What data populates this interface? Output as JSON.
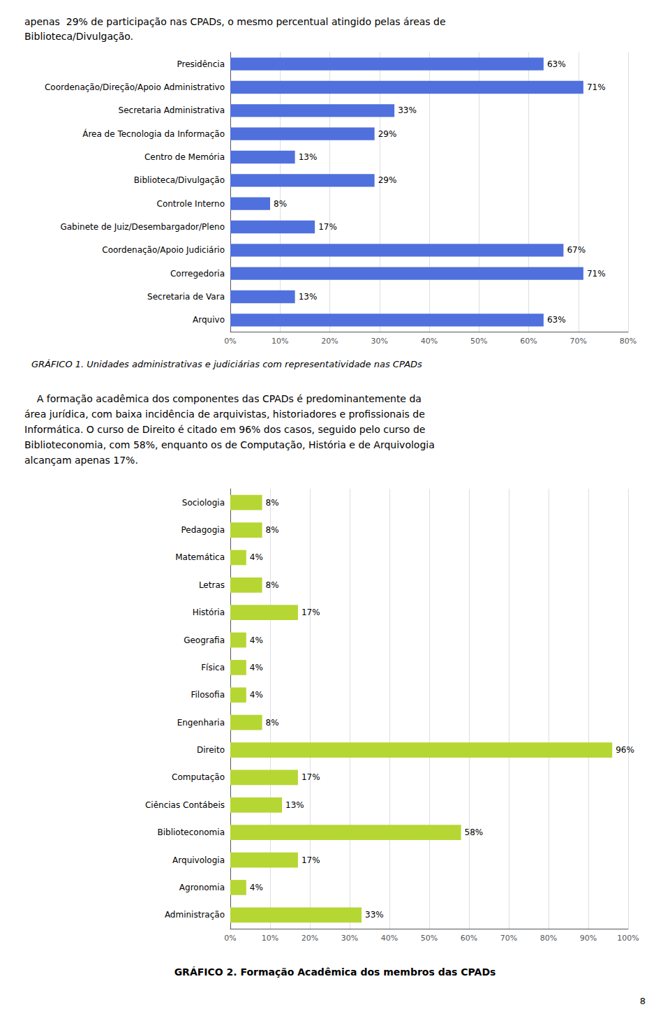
{
  "chart_data": [
    {
      "type": "bar",
      "orientation": "horizontal",
      "title": "GRÁFICO 1. Unidades administrativas e judiciárias com representatividade nas CPADs",
      "annotations": [
        "apenas  29% de participação nas CPADs, o mesmo percentual atingido pelas áreas de\nBiblioteca/Divulgação."
      ],
      "categories": [
        "Presidência",
        "Coordenação/Direção/Apoio Administrativo",
        "Secretaria Administrativa",
        "Área de Tecnologia da Informação",
        "Centro de Memória",
        "Biblioteca/Divulgação",
        "Controle Interno",
        "Gabinete de Juiz/Desembargador/Pleno",
        "Coordenação/Apoio Judiciário",
        "Corregedoria",
        "Secretaria de Vara",
        "Arquivo"
      ],
      "values": [
        63,
        71,
        33,
        29,
        13,
        29,
        8,
        17,
        67,
        71,
        13,
        63
      ],
      "value_labels": [
        "63%",
        "71%",
        "33%",
        "29%",
        "13%",
        "29%",
        "8%",
        "17%",
        "67%",
        "71%",
        "13%",
        "63%"
      ],
      "data_labels": true,
      "xlim": [
        0,
        80
      ],
      "xticks": [
        {
          "value": 0,
          "label": "0%"
        },
        {
          "value": 10,
          "label": "10%"
        },
        {
          "value": 20,
          "label": "20%"
        },
        {
          "value": 30,
          "label": "30%"
        },
        {
          "value": 40,
          "label": "40%"
        },
        {
          "value": 50,
          "label": "50%"
        },
        {
          "value": 60,
          "label": "60%"
        },
        {
          "value": 70,
          "label": "70%"
        },
        {
          "value": 80,
          "label": "80%"
        }
      ],
      "grid": true
    },
    {
      "type": "bar",
      "orientation": "horizontal",
      "title": "GRÁFICO 2. Formação Acadêmica dos membros das CPADs",
      "annotations": [
        "    A formação acadêmica dos componentes das CPADs é predominantemente da\nárea jurídica, com baixa incidência de arquivistas, historiadores e profissionais de\nInformática. O curso de Direito é citado em 96% dos casos, seguido pelo curso de\nBiblioteconomia, com 58%, enquanto os de Computação, História e de Arquivologia\nalcançam apenas 17%.",
        "8"
      ],
      "categories": [
        "Sociologia",
        "Pedagogia",
        "Matemática",
        "Letras",
        "História",
        "Geografia",
        "Física",
        "Filosofia",
        "Engenharia",
        "Direito",
        "Computação",
        "Ciências Contábeis",
        "Biblioteconomia",
        "Arquivologia",
        "Agronomia",
        "Administração"
      ],
      "values": [
        8,
        8,
        4,
        8,
        17,
        4,
        4,
        4,
        8,
        96,
        17,
        13,
        58,
        17,
        4,
        33
      ],
      "value_labels": [
        "8%",
        "8%",
        "4%",
        "8%",
        "17%",
        "4%",
        "4%",
        "4%",
        "8%",
        "96%",
        "17%",
        "13%",
        "58%",
        "17%",
        "4%",
        "33%"
      ],
      "data_labels": true,
      "xlim": [
        0,
        100
      ],
      "xticks": [
        {
          "value": 0,
          "label": "0%"
        },
        {
          "value": 10,
          "label": "10%"
        },
        {
          "value": 20,
          "label": "20%"
        },
        {
          "value": 30,
          "label": "30%"
        },
        {
          "value": 40,
          "label": "40%"
        },
        {
          "value": 50,
          "label": "50%"
        },
        {
          "value": 60,
          "label": "60%"
        },
        {
          "value": 70,
          "label": "70%"
        },
        {
          "value": 80,
          "label": "80%"
        },
        {
          "value": 90,
          "label": "90%"
        },
        {
          "value": 100,
          "label": "100%"
        }
      ],
      "grid": true
    }
  ]
}
